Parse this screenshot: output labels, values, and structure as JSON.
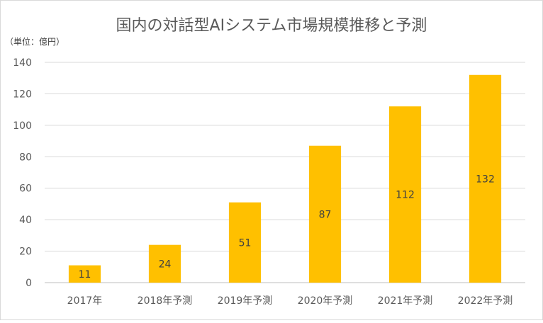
{
  "chart_data": {
    "type": "bar",
    "title": "国内の対話型AIシステム市場規模推移と予測",
    "unit_note": "（単位：億円）",
    "categories": [
      "2017年",
      "2018年予測",
      "2019年予測",
      "2020年予測",
      "2021年予測",
      "2022年予測"
    ],
    "values": [
      11,
      24,
      51,
      87,
      112,
      132
    ],
    "ylim": [
      0,
      140
    ],
    "yticks": [
      0,
      20,
      40,
      60,
      80,
      100,
      120,
      140
    ],
    "grid": true,
    "data_labels": true,
    "legend": "none",
    "bar_color": "#FFC000"
  }
}
